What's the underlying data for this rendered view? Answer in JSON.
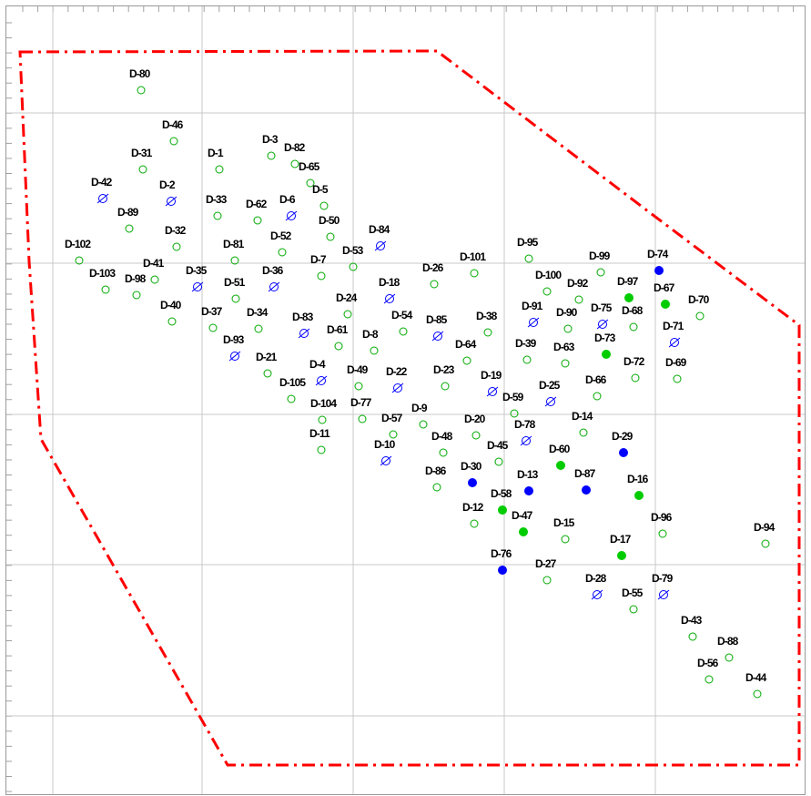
{
  "map": {
    "boundary_color": "#ff0000",
    "grid_color": "#c8c8c8",
    "symbol_types": {
      "open": {
        "color": "#00aa00",
        "description": "open-circle"
      },
      "filled-green": {
        "color": "#00cc00",
        "description": "filled-circle"
      },
      "filled-blue": {
        "color": "#0000ff",
        "description": "filled-circle"
      },
      "dry": {
        "color": "#0000ff",
        "description": "circle-with-slash"
      }
    },
    "points": [
      {
        "label": "D-80",
        "type": "open"
      },
      {
        "label": "D-46",
        "type": "open"
      },
      {
        "label": "D-31",
        "type": "open"
      },
      {
        "label": "D-1",
        "type": "open"
      },
      {
        "label": "D-3",
        "type": "open"
      },
      {
        "label": "D-82",
        "type": "open"
      },
      {
        "label": "D-65",
        "type": "open"
      },
      {
        "label": "D-42",
        "type": "dry"
      },
      {
        "label": "D-2",
        "type": "dry"
      },
      {
        "label": "D-5",
        "type": "open"
      },
      {
        "label": "D-89",
        "type": "open"
      },
      {
        "label": "D-33",
        "type": "open"
      },
      {
        "label": "D-62",
        "type": "open"
      },
      {
        "label": "D-6",
        "type": "dry"
      },
      {
        "label": "D-50",
        "type": "open"
      },
      {
        "label": "D-32",
        "type": "open"
      },
      {
        "label": "D-102",
        "type": "open"
      },
      {
        "label": "D-81",
        "type": "open"
      },
      {
        "label": "D-52",
        "type": "open"
      },
      {
        "label": "D-84",
        "type": "dry"
      },
      {
        "label": "D-53",
        "type": "open"
      },
      {
        "label": "D-95",
        "type": "open"
      },
      {
        "label": "D-41",
        "type": "open"
      },
      {
        "label": "D-7",
        "type": "open"
      },
      {
        "label": "D-101",
        "type": "open"
      },
      {
        "label": "D-103",
        "type": "open"
      },
      {
        "label": "D-98",
        "type": "open"
      },
      {
        "label": "D-35",
        "type": "dry"
      },
      {
        "label": "D-36",
        "type": "dry"
      },
      {
        "label": "D-26",
        "type": "open"
      },
      {
        "label": "D-99",
        "type": "open"
      },
      {
        "label": "D-74",
        "type": "filled-blue"
      },
      {
        "label": "D-51",
        "type": "open"
      },
      {
        "label": "D-18",
        "type": "dry"
      },
      {
        "label": "D-100",
        "type": "open"
      },
      {
        "label": "D-92",
        "type": "open"
      },
      {
        "label": "D-97",
        "type": "filled-green"
      },
      {
        "label": "D-67",
        "type": "filled-green"
      },
      {
        "label": "D-40",
        "type": "open"
      },
      {
        "label": "D-24",
        "type": "open"
      },
      {
        "label": "D-70",
        "type": "open"
      },
      {
        "label": "D-37",
        "type": "open"
      },
      {
        "label": "D-34",
        "type": "open"
      },
      {
        "label": "D-83",
        "type": "dry"
      },
      {
        "label": "D-54",
        "type": "open"
      },
      {
        "label": "D-85",
        "type": "dry"
      },
      {
        "label": "D-38",
        "type": "open"
      },
      {
        "label": "D-91",
        "type": "dry"
      },
      {
        "label": "D-90",
        "type": "open"
      },
      {
        "label": "D-75",
        "type": "dry"
      },
      {
        "label": "D-68",
        "type": "open"
      },
      {
        "label": "D-61",
        "type": "open"
      },
      {
        "label": "D-8",
        "type": "open"
      },
      {
        "label": "D-71",
        "type": "dry"
      },
      {
        "label": "D-93",
        "type": "dry"
      },
      {
        "label": "D-64",
        "type": "open"
      },
      {
        "label": "D-39",
        "type": "open"
      },
      {
        "label": "D-63",
        "type": "open"
      },
      {
        "label": "D-73",
        "type": "filled-green"
      },
      {
        "label": "D-21",
        "type": "open"
      },
      {
        "label": "D-4",
        "type": "dry"
      },
      {
        "label": "D-49",
        "type": "open"
      },
      {
        "label": "D-22",
        "type": "dry"
      },
      {
        "label": "D-23",
        "type": "open"
      },
      {
        "label": "D-72",
        "type": "open"
      },
      {
        "label": "D-69",
        "type": "open"
      },
      {
        "label": "D-105",
        "type": "open"
      },
      {
        "label": "D-19",
        "type": "dry"
      },
      {
        "label": "D-25",
        "type": "dry"
      },
      {
        "label": "D-66",
        "type": "open"
      },
      {
        "label": "D-59",
        "type": "open"
      },
      {
        "label": "D-104",
        "type": "open"
      },
      {
        "label": "D-77",
        "type": "open"
      },
      {
        "label": "D-9",
        "type": "open"
      },
      {
        "label": "D-57",
        "type": "open"
      },
      {
        "label": "D-20",
        "type": "open"
      },
      {
        "label": "D-14",
        "type": "open"
      },
      {
        "label": "D-78",
        "type": "dry"
      },
      {
        "label": "D-11",
        "type": "open"
      },
      {
        "label": "D-10",
        "type": "dry"
      },
      {
        "label": "D-48",
        "type": "open"
      },
      {
        "label": "D-45",
        "type": "open"
      },
      {
        "label": "D-29",
        "type": "filled-blue"
      },
      {
        "label": "D-60",
        "type": "filled-green"
      },
      {
        "label": "D-86",
        "type": "open"
      },
      {
        "label": "D-30",
        "type": "filled-blue"
      },
      {
        "label": "D-13",
        "type": "filled-blue"
      },
      {
        "label": "D-87",
        "type": "filled-blue"
      },
      {
        "label": "D-16",
        "type": "filled-green"
      },
      {
        "label": "D-58",
        "type": "filled-green"
      },
      {
        "label": "D-12",
        "type": "open"
      },
      {
        "label": "D-47",
        "type": "filled-green"
      },
      {
        "label": "D-15",
        "type": "open"
      },
      {
        "label": "D-96",
        "type": "open"
      },
      {
        "label": "D-17",
        "type": "filled-green"
      },
      {
        "label": "D-94",
        "type": "open"
      },
      {
        "label": "D-76",
        "type": "filled-blue"
      },
      {
        "label": "D-27",
        "type": "open"
      },
      {
        "label": "D-28",
        "type": "dry"
      },
      {
        "label": "D-79",
        "type": "dry"
      },
      {
        "label": "D-55",
        "type": "open"
      },
      {
        "label": "D-43",
        "type": "open"
      },
      {
        "label": "D-88",
        "type": "open"
      },
      {
        "label": "D-56",
        "type": "open"
      },
      {
        "label": "D-44",
        "type": "open"
      }
    ]
  }
}
